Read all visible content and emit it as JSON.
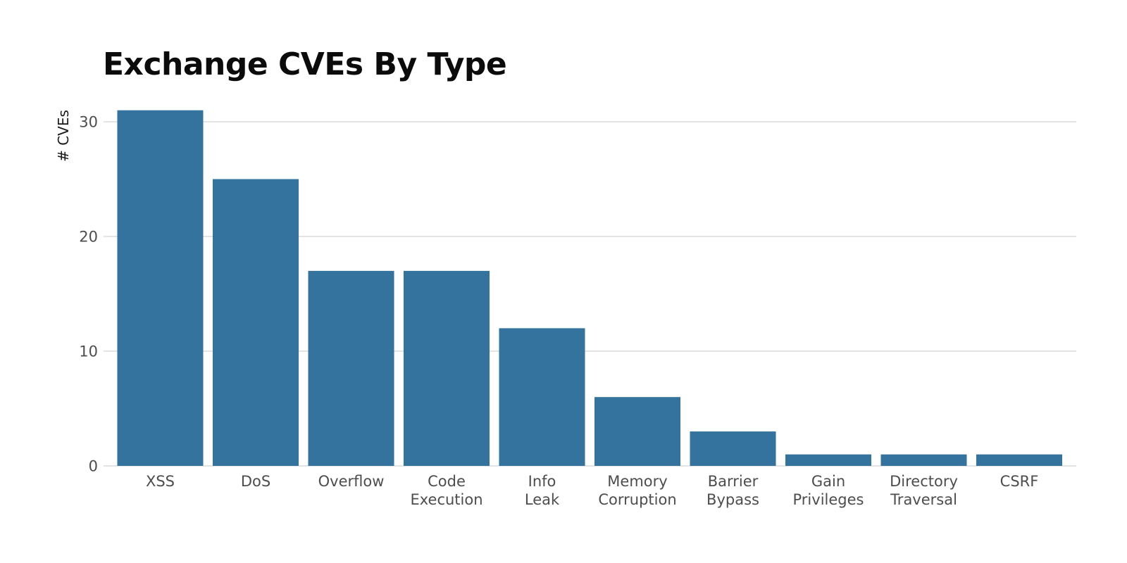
{
  "chart_data": {
    "type": "bar",
    "title": "Exchange CVEs By Type",
    "xlabel": "",
    "ylabel": "# CVEs",
    "ylim": [
      0,
      31
    ],
    "yticks": [
      0,
      10,
      20,
      30
    ],
    "grid": true,
    "bar_color": "#33739d",
    "categories": [
      [
        "XSS"
      ],
      [
        "DoS"
      ],
      [
        "Overflow"
      ],
      [
        "Code",
        "Execution"
      ],
      [
        "Info",
        "Leak"
      ],
      [
        "Memory",
        "Corruption"
      ],
      [
        "Barrier",
        "Bypass"
      ],
      [
        "Gain",
        "Privileges"
      ],
      [
        "Directory",
        "Traversal"
      ],
      [
        "CSRF"
      ]
    ],
    "values": [
      31,
      25,
      17,
      17,
      12,
      6,
      3,
      1,
      1,
      1
    ]
  }
}
